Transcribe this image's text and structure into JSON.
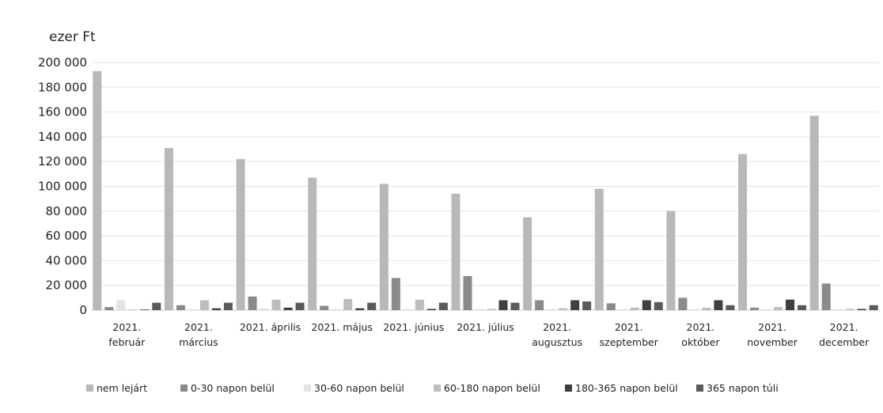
{
  "chart_data": {
    "type": "bar",
    "ylabel": "ezer Ft",
    "ylim": [
      0,
      200000
    ],
    "yticks": [
      "200 000",
      "180 000",
      "160 000",
      "140 000",
      "120 000",
      "100 000",
      "80 000",
      "60 000",
      "40 000",
      "20 000",
      "0"
    ],
    "ytick_values": [
      200000,
      180000,
      160000,
      140000,
      120000,
      100000,
      80000,
      60000,
      40000,
      20000,
      0
    ],
    "grid": true,
    "legend_position": "bottom",
    "categories": [
      [
        "2021.",
        "február"
      ],
      [
        "2021.",
        "március"
      ],
      [
        "2021. április"
      ],
      [
        "2021. május"
      ],
      [
        "2021. június"
      ],
      [
        "2021. július"
      ],
      [
        "2021.",
        "augusztus"
      ],
      [
        "2021.",
        "szeptember"
      ],
      [
        "2021.",
        "október"
      ],
      [
        "2021.",
        "november"
      ],
      [
        "2021.",
        "december"
      ]
    ],
    "series": [
      {
        "name": "nem lejárt",
        "color": "#b8b8b8",
        "values": [
          193000,
          131000,
          122000,
          107000,
          102000,
          94000,
          75000,
          98000,
          80000,
          126000,
          157000
        ]
      },
      {
        "name": "0-30 napon belül",
        "color": "#8a8a8a",
        "values": [
          2500,
          4000,
          11000,
          3500,
          2000,
          1500,
          8000,
          5500,
          10000,
          2000,
          1500
        ]
      },
      {
        "name": "30-60 napon belül",
        "color": "#e2e2e2",
        "values": [
          8000,
          1000,
          1500,
          1000,
          1000,
          1000,
          1000,
          1000,
          1000,
          1000,
          1000
        ]
      },
      {
        "name": "60-180 napon belül",
        "color": "#bdbdbd",
        "values": [
          500,
          8000,
          8500,
          9000,
          8500,
          1000,
          1500,
          2000,
          2000,
          2500,
          1000
        ]
      },
      {
        "name": "180-365 napon belül",
        "color": "#3f3f3f",
        "values": [
          500,
          1500,
          2000,
          1500,
          1000,
          8000,
          8000,
          8000,
          8000,
          8500,
          1000
        ]
      },
      {
        "name": "365 napon túli",
        "color": "#5a5a5a",
        "values": [
          6000,
          6000,
          6000,
          6000,
          6000,
          6000,
          7000,
          6500,
          4000,
          4000,
          4000
        ]
      }
    ],
    "highlight_series": {
      "index": 1,
      "values_override": [
        null,
        null,
        null,
        null,
        26000,
        27500,
        null,
        null,
        null,
        null,
        21500
      ]
    }
  }
}
